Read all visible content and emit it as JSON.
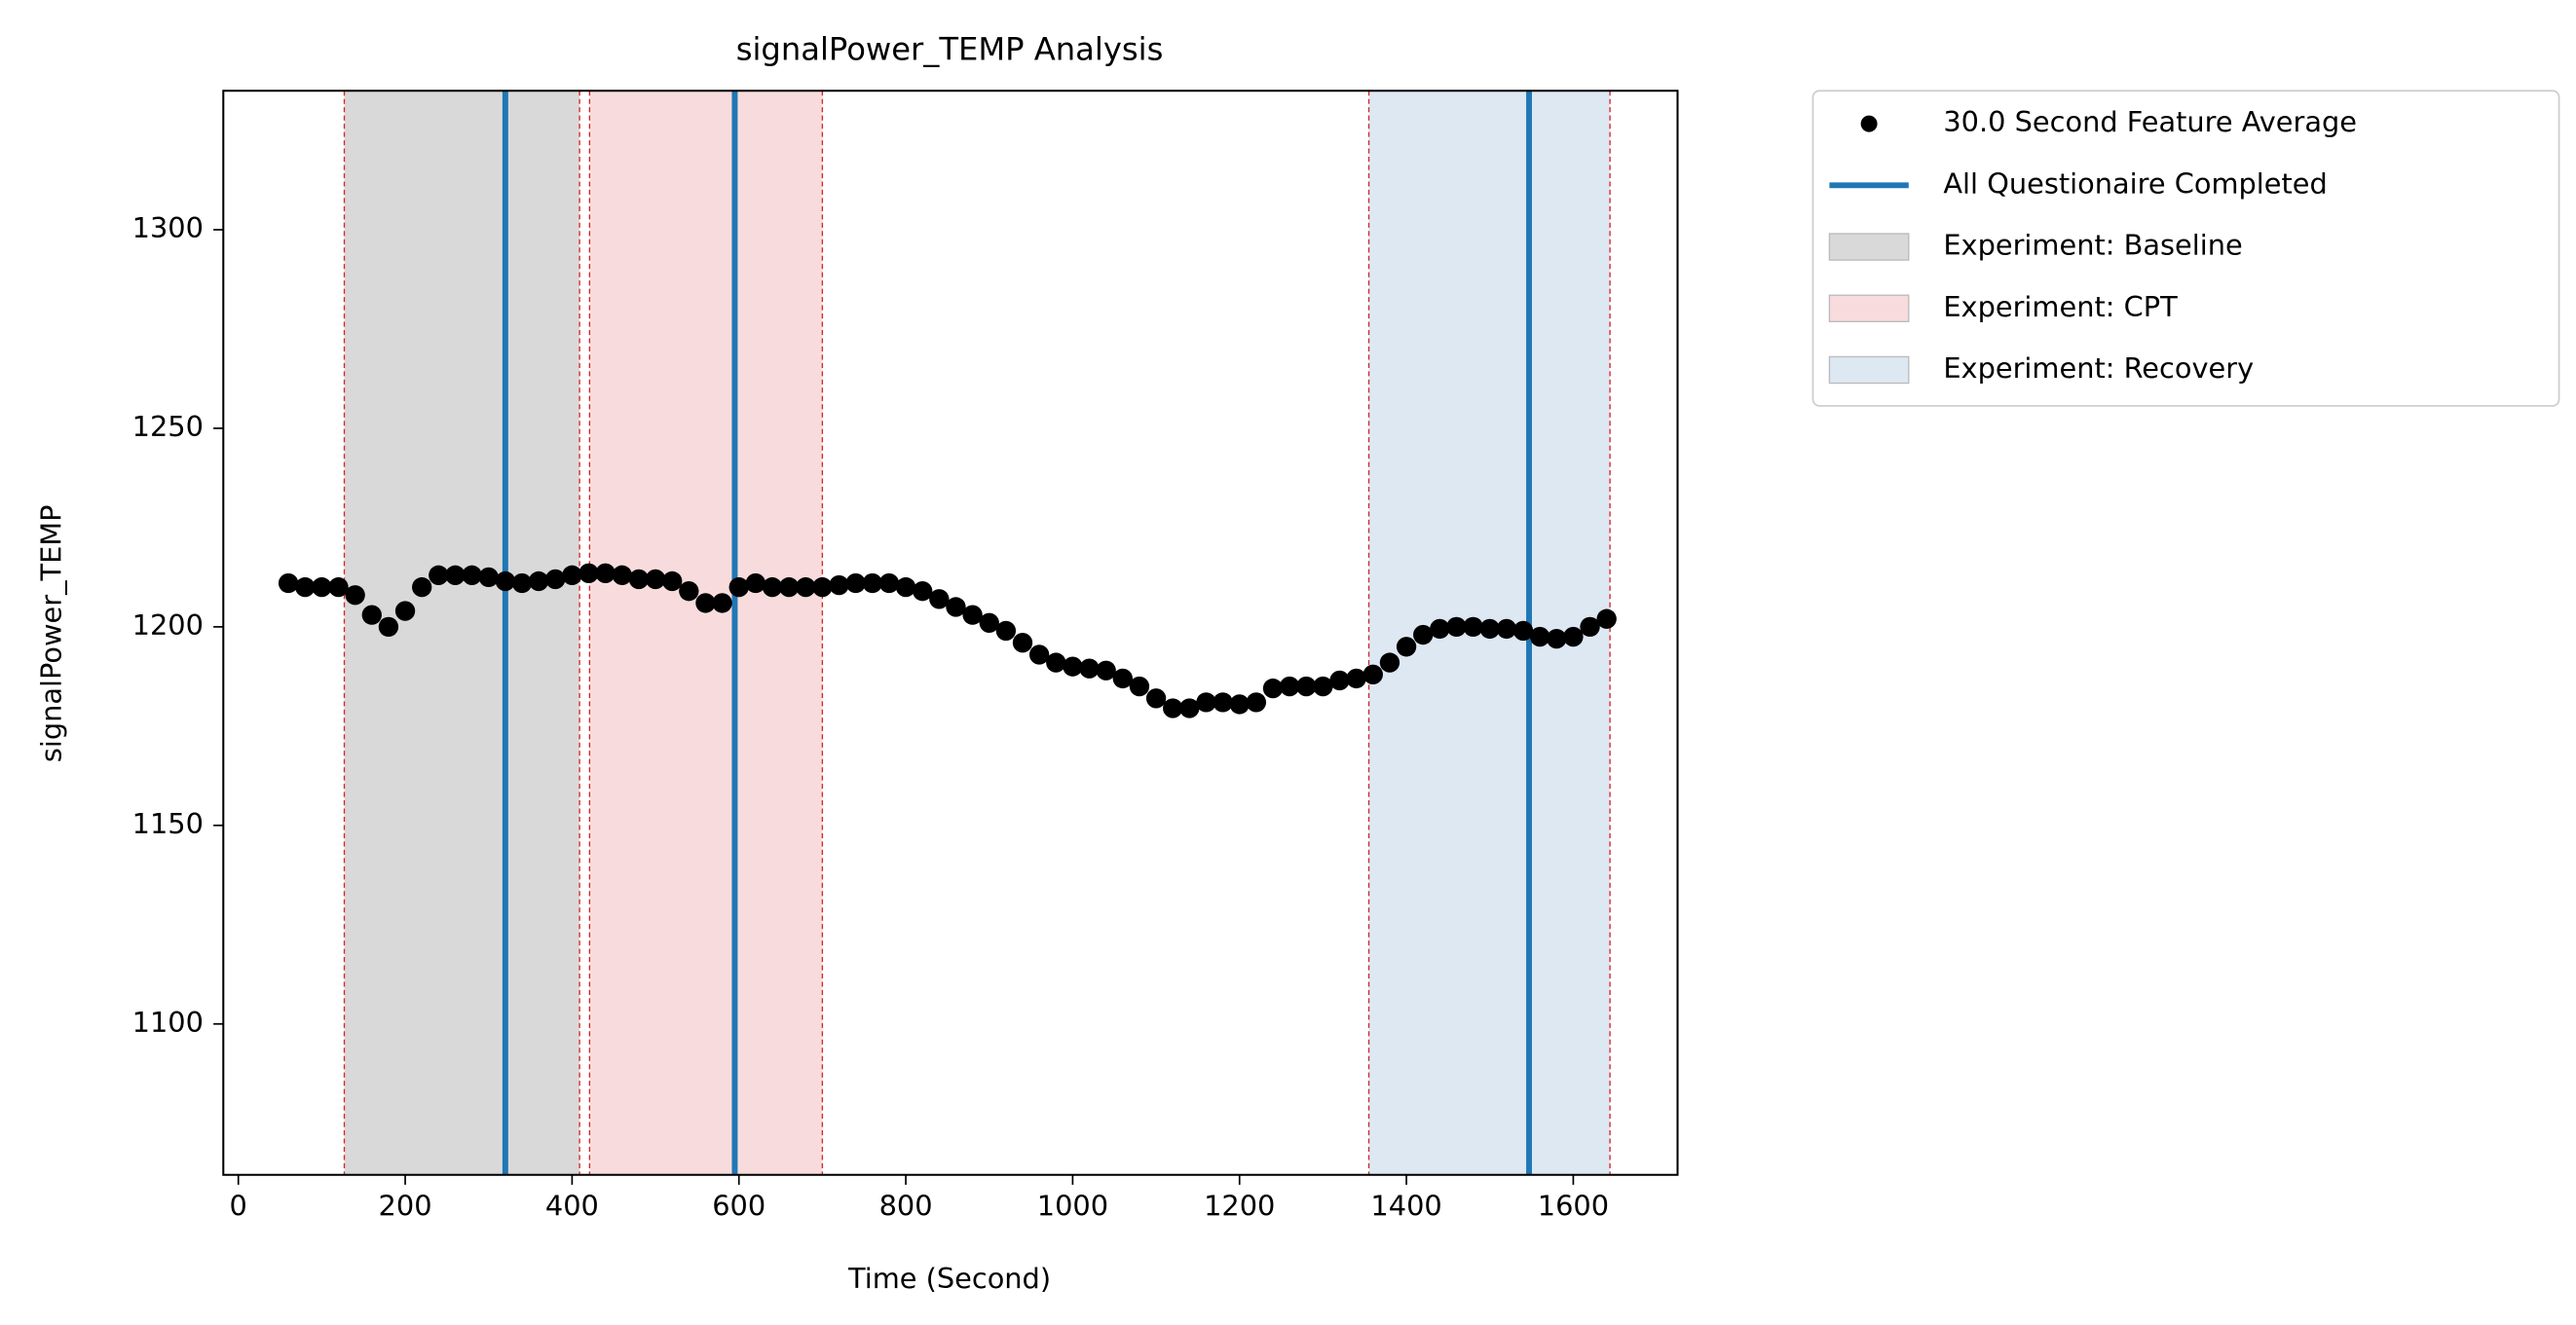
{
  "chart_data": {
    "type": "scatter",
    "title": "signalPower_TEMP Analysis",
    "x_label": "Time (Second)",
    "y_label": "signalPower_TEMP",
    "x": [
      60,
      80,
      100,
      120,
      140,
      160,
      180,
      200,
      220,
      240,
      260,
      280,
      300,
      320,
      340,
      360,
      380,
      400,
      420,
      440,
      460,
      480,
      500,
      520,
      540,
      560,
      580,
      600,
      620,
      640,
      660,
      680,
      700,
      720,
      740,
      760,
      780,
      800,
      820,
      840,
      860,
      880,
      900,
      920,
      940,
      960,
      980,
      1000,
      1020,
      1040,
      1060,
      1080,
      1100,
      1120,
      1140,
      1160,
      1180,
      1200,
      1220,
      1240,
      1260,
      1280,
      1300,
      1320,
      1340,
      1360,
      1380,
      1400,
      1420,
      1440,
      1460,
      1480,
      1500,
      1520,
      1540,
      1560,
      1580,
      1600,
      1620,
      1640
    ],
    "series": [
      {
        "name": "30.0 Second Feature Average",
        "color": "#000000",
        "values": [
          1211,
          1210,
          1210,
          1210,
          1208,
          1203,
          1200,
          1204,
          1210,
          1213,
          1213,
          1213,
          1212.5,
          1211.5,
          1211,
          1211.5,
          1212,
          1213,
          1213.5,
          1213.5,
          1213,
          1212,
          1212,
          1211.5,
          1209,
          1206,
          1206,
          1210,
          1211,
          1210,
          1210,
          1210,
          1210,
          1210.5,
          1211,
          1211,
          1211,
          1210,
          1209,
          1207,
          1205,
          1203,
          1201,
          1199,
          1196,
          1193,
          1191,
          1190,
          1189.5,
          1189,
          1187,
          1185,
          1182,
          1179.5,
          1179.5,
          1181,
          1181,
          1180.5,
          1181,
          1184.5,
          1185,
          1185,
          1185,
          1186.5,
          1187,
          1188,
          1191,
          1195,
          1198,
          1199.5,
          1200,
          1200,
          1199.5,
          1199.5,
          1199,
          1197.5,
          1197,
          1197.5,
          1200,
          1202
        ]
      }
    ],
    "vlines": {
      "name": "All Questionaire Completed",
      "color": "#1f77b4",
      "x": [
        320,
        595,
        1547
      ]
    },
    "spans": [
      {
        "name": "Experiment: Baseline",
        "color": "#d9d9d9",
        "start": 127,
        "end": 409
      },
      {
        "name": "Experiment: CPT",
        "color": "#f8dcdd",
        "start": 421,
        "end": 700
      },
      {
        "name": "Experiment: Recovery",
        "color": "#dde8f2",
        "start": 1355,
        "end": 1644
      }
    ],
    "xlim": [
      -18,
      1725
    ],
    "ylim": [
      1062,
      1335
    ],
    "xticks": [
      0,
      200,
      400,
      600,
      800,
      1000,
      1200,
      1400,
      1600
    ],
    "yticks": [
      1100,
      1150,
      1200,
      1250,
      1300
    ],
    "legend": "outside-right"
  }
}
